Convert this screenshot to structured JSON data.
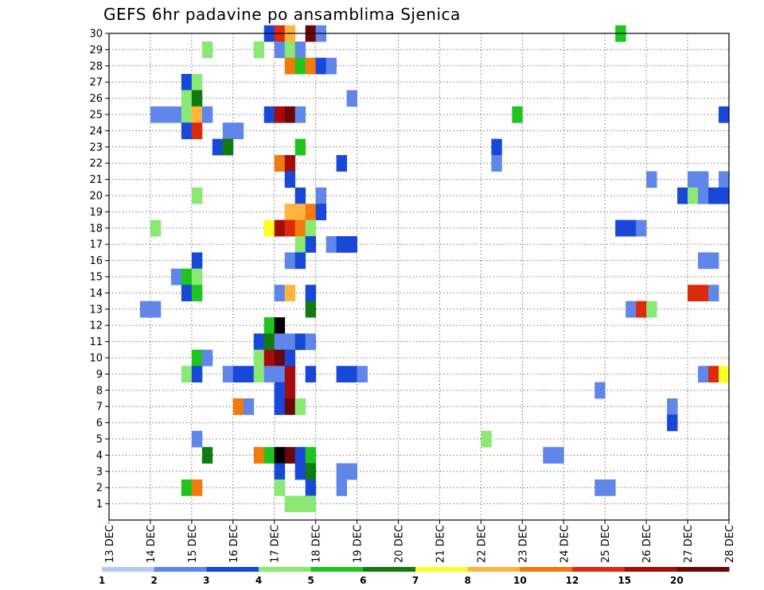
{
  "title": "GEFS 6hr padavine po ansamblima Sjenica",
  "chart_data": {
    "type": "heatmap",
    "title": "GEFS 6hr padavine po ansamblima Sjenica",
    "x_ticks": [
      "13 DEC",
      "14 DEC",
      "15 DEC",
      "16 DEC",
      "17 DEC",
      "18 DEC",
      "19 DEC",
      "20 DEC",
      "21 DEC",
      "22 DEC",
      "23 DEC",
      "24 DEC",
      "25 DEC",
      "26 DEC",
      "27 DEC",
      "28 DEC"
    ],
    "y_ticks": [
      1,
      2,
      3,
      4,
      5,
      6,
      7,
      8,
      9,
      10,
      11,
      12,
      13,
      14,
      15,
      16,
      17,
      18,
      19,
      20,
      21,
      22,
      23,
      24,
      25,
      26,
      27,
      28,
      29,
      30
    ],
    "x_range": [
      "13 DEC 00Z",
      "28 DEC 00Z"
    ],
    "y_range": [
      0,
      30
    ],
    "x_unit": "6hr steps from 13 DEC 00Z",
    "grid": true,
    "colorbar": {
      "labels": [
        "1",
        "2",
        "3",
        "4",
        "5",
        "6",
        "7",
        "8",
        "10",
        "12",
        "15",
        "20"
      ],
      "colors": [
        "#b5c9f5",
        "#5f86e8",
        "#1848d8",
        "#8ae874",
        "#1fc41f",
        "#117a11",
        "#ffff22",
        "#ffb43c",
        "#f37a0c",
        "#dc2a0c",
        "#a60c0c",
        "#6b0606"
      ]
    },
    "cells": [
      [
        30,
        "16 DEC 18Z",
        2
      ],
      [
        30,
        "17 DEC 00Z",
        9
      ],
      [
        30,
        "17 DEC 06Z",
        7
      ],
      [
        30,
        "17 DEC 18Z",
        11
      ],
      [
        30,
        "18 DEC 00Z",
        1
      ],
      [
        30,
        "25 DEC 06Z",
        4
      ],
      [
        29,
        "15 DEC 06Z",
        3
      ],
      [
        29,
        "16 DEC 12Z",
        3
      ],
      [
        29,
        "17 DEC 00Z",
        1
      ],
      [
        29,
        "17 DEC 06Z",
        3
      ],
      [
        29,
        "17 DEC 12Z",
        1
      ],
      [
        28,
        "17 DEC 06Z",
        8
      ],
      [
        28,
        "17 DEC 12Z",
        4
      ],
      [
        28,
        "17 DEC 18Z",
        8
      ],
      [
        28,
        "18 DEC 00Z",
        2
      ],
      [
        28,
        "18 DEC 06Z",
        1
      ],
      [
        27,
        "14 DEC 18Z",
        2
      ],
      [
        27,
        "15 DEC 00Z",
        3
      ],
      [
        26,
        "14 DEC 18Z",
        3
      ],
      [
        26,
        "15 DEC 00Z",
        5
      ],
      [
        26,
        "18 DEC 18Z",
        1
      ],
      [
        25,
        "14 DEC 00Z",
        1
      ],
      [
        25,
        "14 DEC 06Z",
        1
      ],
      [
        25,
        "14 DEC 12Z",
        1
      ],
      [
        25,
        "14 DEC 18Z",
        3
      ],
      [
        25,
        "15 DEC 00Z",
        7
      ],
      [
        25,
        "15 DEC 06Z",
        1
      ],
      [
        25,
        "16 DEC 18Z",
        2
      ],
      [
        25,
        "17 DEC 00Z",
        10
      ],
      [
        25,
        "17 DEC 06Z",
        11
      ],
      [
        25,
        "17 DEC 12Z",
        1
      ],
      [
        25,
        "22 DEC 18Z",
        4
      ],
      [
        25,
        "27 DEC 18Z",
        2
      ],
      [
        24,
        "14 DEC 18Z",
        2
      ],
      [
        24,
        "15 DEC 00Z",
        9
      ],
      [
        24,
        "15 DEC 18Z",
        1
      ],
      [
        24,
        "16 DEC 00Z",
        1
      ],
      [
        23,
        "15 DEC 12Z",
        2
      ],
      [
        23,
        "15 DEC 18Z",
        5
      ],
      [
        23,
        "17 DEC 12Z",
        4
      ],
      [
        23,
        "22 DEC 06Z",
        2
      ],
      [
        22,
        "17 DEC 00Z",
        8
      ],
      [
        22,
        "17 DEC 06Z",
        10
      ],
      [
        22,
        "18 DEC 12Z",
        2
      ],
      [
        22,
        "22 DEC 06Z",
        1
      ],
      [
        21,
        "17 DEC 06Z",
        2
      ],
      [
        21,
        "26 DEC 00Z",
        1
      ],
      [
        21,
        "27 DEC 00Z",
        1
      ],
      [
        21,
        "27 DEC 06Z",
        1
      ],
      [
        21,
        "27 DEC 18Z",
        1
      ],
      [
        20,
        "15 DEC 00Z",
        3
      ],
      [
        20,
        "17 DEC 12Z",
        2
      ],
      [
        20,
        "18 DEC 00Z",
        1
      ],
      [
        20,
        "26 DEC 18Z",
        2
      ],
      [
        20,
        "27 DEC 00Z",
        3
      ],
      [
        20,
        "27 DEC 06Z",
        1
      ],
      [
        20,
        "27 DEC 12Z",
        2
      ],
      [
        20,
        "27 DEC 18Z",
        2
      ],
      [
        19,
        "17 DEC 06Z",
        7
      ],
      [
        19,
        "17 DEC 12Z",
        7
      ],
      [
        19,
        "17 DEC 18Z",
        8
      ],
      [
        19,
        "18 DEC 00Z",
        2
      ],
      [
        18,
        "14 DEC 00Z",
        3
      ],
      [
        18,
        "16 DEC 18Z",
        6
      ],
      [
        18,
        "17 DEC 00Z",
        10
      ],
      [
        18,
        "17 DEC 06Z",
        9
      ],
      [
        18,
        "17 DEC 12Z",
        8
      ],
      [
        18,
        "17 DEC 18Z",
        3
      ],
      [
        18,
        "25 DEC 06Z",
        2
      ],
      [
        18,
        "25 DEC 12Z",
        2
      ],
      [
        18,
        "25 DEC 18Z",
        1
      ],
      [
        17,
        "17 DEC 12Z",
        3
      ],
      [
        17,
        "17 DEC 18Z",
        2
      ],
      [
        17,
        "18 DEC 06Z",
        1
      ],
      [
        17,
        "18 DEC 12Z",
        2
      ],
      [
        17,
        "18 DEC 18Z",
        2
      ],
      [
        16,
        "15 DEC 00Z",
        2
      ],
      [
        16,
        "17 DEC 06Z",
        1
      ],
      [
        16,
        "17 DEC 12Z",
        2
      ],
      [
        16,
        "27 DEC 06Z",
        1
      ],
      [
        16,
        "27 DEC 12Z",
        1
      ],
      [
        15,
        "14 DEC 12Z",
        1
      ],
      [
        15,
        "14 DEC 18Z",
        4
      ],
      [
        15,
        "15 DEC 00Z",
        3
      ],
      [
        14,
        "14 DEC 18Z",
        2
      ],
      [
        14,
        "15 DEC 00Z",
        4
      ],
      [
        14,
        "17 DEC 00Z",
        1
      ],
      [
        14,
        "17 DEC 06Z",
        7
      ],
      [
        14,
        "17 DEC 18Z",
        2
      ],
      [
        14,
        "27 DEC 00Z",
        9
      ],
      [
        14,
        "27 DEC 06Z",
        9
      ],
      [
        14,
        "27 DEC 12Z",
        1
      ],
      [
        13,
        "13 DEC 18Z",
        1
      ],
      [
        13,
        "14 DEC 00Z",
        1
      ],
      [
        13,
        "17 DEC 18Z",
        5
      ],
      [
        13,
        "25 DEC 12Z",
        1
      ],
      [
        13,
        "25 DEC 18Z",
        9
      ],
      [
        13,
        "26 DEC 00Z",
        3
      ],
      [
        12,
        "16 DEC 18Z",
        4
      ],
      [
        12,
        "17 DEC 00Z",
        12
      ],
      [
        11,
        "16 DEC 12Z",
        2
      ],
      [
        11,
        "16 DEC 18Z",
        5
      ],
      [
        11,
        "17 DEC 00Z",
        1
      ],
      [
        11,
        "17 DEC 06Z",
        1
      ],
      [
        11,
        "17 DEC 12Z",
        2
      ],
      [
        11,
        "17 DEC 18Z",
        1
      ],
      [
        10,
        "15 DEC 00Z",
        4
      ],
      [
        10,
        "15 DEC 06Z",
        1
      ],
      [
        10,
        "16 DEC 12Z",
        3
      ],
      [
        10,
        "16 DEC 18Z",
        10
      ],
      [
        10,
        "17 DEC 00Z",
        11
      ],
      [
        10,
        "17 DEC 06Z",
        2
      ],
      [
        9,
        "14 DEC 18Z",
        3
      ],
      [
        9,
        "15 DEC 00Z",
        2
      ],
      [
        9,
        "15 DEC 18Z",
        1
      ],
      [
        9,
        "16 DEC 00Z",
        2
      ],
      [
        9,
        "16 DEC 06Z",
        2
      ],
      [
        9,
        "16 DEC 12Z",
        3
      ],
      [
        9,
        "16 DEC 18Z",
        1
      ],
      [
        9,
        "17 DEC 00Z",
        1
      ],
      [
        9,
        "17 DEC 06Z",
        10
      ],
      [
        9,
        "17 DEC 18Z",
        2
      ],
      [
        9,
        "18 DEC 12Z",
        2
      ],
      [
        9,
        "18 DEC 18Z",
        2
      ],
      [
        9,
        "19 DEC 00Z",
        1
      ],
      [
        9,
        "27 DEC 06Z",
        1
      ],
      [
        9,
        "27 DEC 12Z",
        9
      ],
      [
        9,
        "27 DEC 18Z",
        6
      ],
      [
        8,
        "17 DEC 00Z",
        2
      ],
      [
        8,
        "17 DEC 06Z",
        10
      ],
      [
        8,
        "24 DEC 18Z",
        1
      ],
      [
        7,
        "16 DEC 00Z",
        8
      ],
      [
        7,
        "16 DEC 06Z",
        1
      ],
      [
        7,
        "17 DEC 00Z",
        2
      ],
      [
        7,
        "17 DEC 06Z",
        11
      ],
      [
        7,
        "17 DEC 12Z",
        3
      ],
      [
        7,
        "26 DEC 12Z",
        1
      ],
      [
        6,
        "26 DEC 12Z",
        2
      ],
      [
        5,
        "15 DEC 00Z",
        1
      ],
      [
        5,
        "22 DEC 00Z",
        3
      ],
      [
        4,
        "15 DEC 06Z",
        5
      ],
      [
        4,
        "16 DEC 12Z",
        8
      ],
      [
        4,
        "16 DEC 18Z",
        4
      ],
      [
        4,
        "17 DEC 00Z",
        12
      ],
      [
        4,
        "17 DEC 06Z",
        11
      ],
      [
        4,
        "17 DEC 12Z",
        2
      ],
      [
        4,
        "17 DEC 18Z",
        4
      ],
      [
        4,
        "23 DEC 12Z",
        1
      ],
      [
        4,
        "23 DEC 18Z",
        1
      ],
      [
        3,
        "17 DEC 00Z",
        2
      ],
      [
        3,
        "17 DEC 12Z",
        2
      ],
      [
        3,
        "17 DEC 18Z",
        5
      ],
      [
        3,
        "18 DEC 12Z",
        1
      ],
      [
        3,
        "18 DEC 18Z",
        1
      ],
      [
        2,
        "14 DEC 18Z",
        4
      ],
      [
        2,
        "15 DEC 00Z",
        8
      ],
      [
        2,
        "17 DEC 00Z",
        3
      ],
      [
        2,
        "17 DEC 18Z",
        2
      ],
      [
        2,
        "18 DEC 12Z",
        1
      ],
      [
        2,
        "24 DEC 18Z",
        1
      ],
      [
        2,
        "25 DEC 00Z",
        1
      ],
      [
        1,
        "17 DEC 06Z",
        3
      ],
      [
        1,
        "17 DEC 12Z",
        3
      ],
      [
        1,
        "17 DEC 18Z",
        3
      ]
    ]
  }
}
